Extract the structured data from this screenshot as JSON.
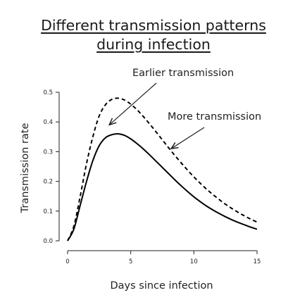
{
  "chart_data": {
    "type": "line",
    "title_lines": [
      "Different transmission patterns",
      "during infection"
    ],
    "xlabel": "Days since infection",
    "ylabel": "Transmission rate",
    "xlim": [
      0,
      15
    ],
    "ylim": [
      0,
      0.5
    ],
    "x_ticks": [
      0,
      5,
      10,
      15
    ],
    "x_tick_labels": [
      "0",
      "5",
      "10",
      "15"
    ],
    "y_ticks": [
      0,
      0.1,
      0.2,
      0.3,
      0.4,
      0.5
    ],
    "y_tick_labels": [
      "0.0",
      "0.1",
      "0.2",
      "0.3",
      "0.4",
      "0.5"
    ],
    "grid": false,
    "series": [
      {
        "style": "solid",
        "color": "#000000",
        "x": [
          0,
          0.5,
          1,
          1.5,
          2,
          2.5,
          3,
          3.5,
          4,
          4.5,
          5,
          5.5,
          6,
          6.5,
          7,
          7.5,
          8,
          8.5,
          9,
          9.5,
          10,
          10.5,
          11,
          11.5,
          12,
          12.5,
          13,
          13.5,
          14,
          14.5,
          15
        ],
        "y": [
          0,
          0.04,
          0.12,
          0.2,
          0.27,
          0.32,
          0.347,
          0.357,
          0.36,
          0.355,
          0.343,
          0.327,
          0.309,
          0.289,
          0.268,
          0.247,
          0.226,
          0.205,
          0.185,
          0.166,
          0.148,
          0.132,
          0.117,
          0.104,
          0.092,
          0.081,
          0.071,
          0.062,
          0.054,
          0.046,
          0.039
        ]
      },
      {
        "style": "dashed",
        "color": "#000000",
        "x": [
          0,
          0.5,
          1,
          1.5,
          2,
          2.5,
          3,
          3.5,
          4,
          4.5,
          5,
          5.5,
          6,
          6.5,
          7,
          7.5,
          8,
          8.5,
          9,
          9.5,
          10,
          10.5,
          11,
          11.5,
          12,
          12.5,
          13,
          13.5,
          14,
          14.5,
          15
        ],
        "y": [
          0,
          0.05,
          0.15,
          0.26,
          0.35,
          0.42,
          0.458,
          0.476,
          0.48,
          0.474,
          0.46,
          0.441,
          0.418,
          0.393,
          0.367,
          0.34,
          0.313,
          0.287,
          0.262,
          0.238,
          0.215,
          0.194,
          0.174,
          0.156,
          0.139,
          0.123,
          0.109,
          0.096,
          0.084,
          0.073,
          0.063
        ]
      }
    ],
    "annotations": [
      {
        "text": "Earlier transmission",
        "arrow_to": {
          "x": 3.3,
          "y": 0.39
        }
      },
      {
        "text": "More transmission",
        "arrow_to": {
          "x": 8.2,
          "y": 0.31
        }
      }
    ]
  }
}
